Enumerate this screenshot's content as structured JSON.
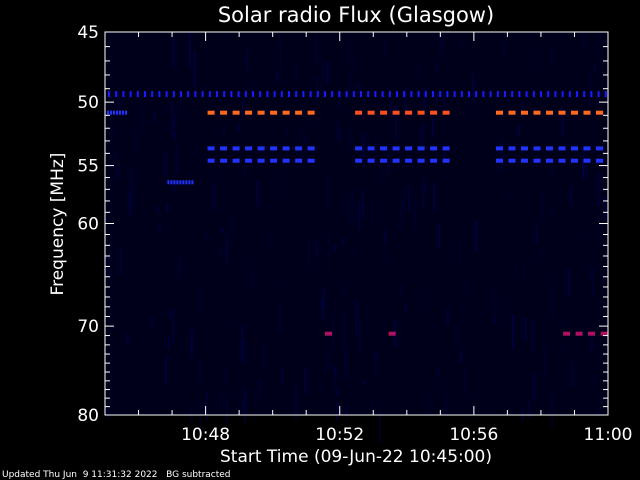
{
  "chart_data": {
    "type": "heatmap",
    "title": "Solar radio Flux (Glasgow)",
    "xlabel": "Start Time (09-Jun-22 10:45:00)",
    "ylabel": "Frequency [MHz]",
    "x_range_minutes": [
      0,
      15
    ],
    "x_tick_labels": [
      "10:48",
      "10:52",
      "10:56",
      "11:00"
    ],
    "x_tick_minutes": [
      3,
      7,
      11,
      15
    ],
    "y_range": [
      45,
      80
    ],
    "y_scale": "log",
    "y_tick_labels": [
      "45",
      "50",
      "55",
      "60",
      "70",
      "80"
    ],
    "y_tick_values": [
      45,
      50,
      55,
      60,
      70,
      80
    ],
    "background": "#00001a",
    "emissions": [
      {
        "start": 0.0,
        "end": 15.0,
        "freq": 49.4,
        "color": "#1a1aff",
        "dash": "tick"
      },
      {
        "start": 0.0,
        "end": 0.6,
        "freq": 50.8,
        "color": "#2233ff",
        "dash": "dot"
      },
      {
        "start": 3.0,
        "end": 6.2,
        "freq": 50.8,
        "color": "#ff6a20",
        "dash": "seg"
      },
      {
        "start": 7.4,
        "end": 10.2,
        "freq": 50.8,
        "color": "#ff5020",
        "dash": "seg"
      },
      {
        "start": 11.6,
        "end": 15.0,
        "freq": 50.8,
        "color": "#ff6a20",
        "dash": "seg"
      },
      {
        "start": 3.0,
        "end": 6.2,
        "freq": 53.6,
        "color": "#2233ff",
        "dash": "seg"
      },
      {
        "start": 7.4,
        "end": 10.2,
        "freq": 53.6,
        "color": "#2233ff",
        "dash": "seg"
      },
      {
        "start": 11.6,
        "end": 15.0,
        "freq": 53.6,
        "color": "#2233ff",
        "dash": "seg"
      },
      {
        "start": 3.0,
        "end": 6.2,
        "freq": 54.6,
        "color": "#2233ff",
        "dash": "seg"
      },
      {
        "start": 7.4,
        "end": 10.2,
        "freq": 54.6,
        "color": "#2233ff",
        "dash": "seg"
      },
      {
        "start": 11.6,
        "end": 15.0,
        "freq": 54.6,
        "color": "#2233ff",
        "dash": "seg"
      },
      {
        "start": 1.8,
        "end": 2.6,
        "freq": 56.4,
        "color": "#2233ff",
        "dash": "dot"
      },
      {
        "start": 6.5,
        "end": 6.9,
        "freq": 70.8,
        "color": "#b01060",
        "dash": "seg"
      },
      {
        "start": 8.4,
        "end": 8.9,
        "freq": 70.8,
        "color": "#b01060",
        "dash": "seg"
      },
      {
        "start": 13.6,
        "end": 15.0,
        "freq": 70.8,
        "color": "#b01060",
        "dash": "seg"
      }
    ]
  },
  "footer": {
    "updated": "Updated Thu Jun  9 11:31:32 2022",
    "note": "BG subtracted"
  }
}
